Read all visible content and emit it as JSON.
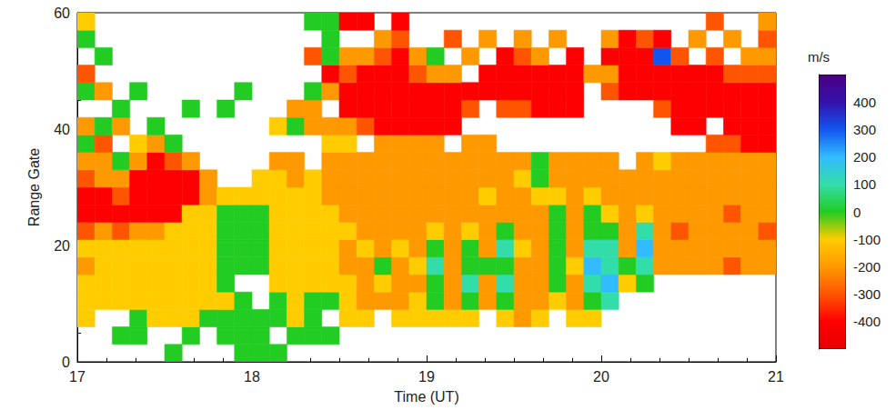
{
  "chart_data": {
    "type": "heatmap",
    "x_label": "Time (UT)",
    "y_label": "Range Gate",
    "xlim": [
      17,
      21
    ],
    "xticks": [
      17,
      18,
      19,
      20,
      21
    ],
    "ylim": [
      0,
      60
    ],
    "yticks": [
      0,
      20,
      40,
      60
    ],
    "grid": false,
    "x_bins": [
      17.0,
      17.1,
      17.2,
      17.3,
      17.4,
      17.5,
      17.6,
      17.7,
      17.8,
      17.9,
      18.0,
      18.1,
      18.2,
      18.3,
      18.4,
      18.5,
      18.6,
      18.7,
      18.8,
      18.9,
      19.0,
      19.1,
      19.2,
      19.3,
      19.4,
      19.5,
      19.6,
      19.7,
      19.8,
      19.9,
      20.0,
      20.1,
      20.2,
      20.3,
      20.4,
      20.5,
      20.6,
      20.7,
      20.8,
      20.9,
      21.0
    ],
    "y_bins": [
      0,
      3,
      6,
      9,
      12,
      15,
      18,
      21,
      24,
      27,
      30,
      33,
      36,
      39,
      42,
      45,
      48,
      51,
      54,
      57,
      60
    ],
    "cells": [
      [
        null,
        null,
        -100,
        -100,
        -100,
        -200,
        -100,
        -300,
        -400,
        -400,
        -300,
        -200,
        0,
        -200,
        null,
        0,
        -300,
        null,
        0,
        -100
      ],
      [
        null,
        null,
        null,
        -100,
        -100,
        -100,
        -100,
        -200,
        -400,
        -400,
        -200,
        -200,
        -300,
        0,
        null,
        -200,
        null,
        0,
        null,
        null
      ],
      [
        null,
        0,
        null,
        -100,
        -100,
        -100,
        -100,
        -300,
        -400,
        -300,
        -200,
        0,
        null,
        -200,
        0,
        null,
        null,
        null,
        null,
        null
      ],
      [
        null,
        0,
        0,
        -100,
        -100,
        -100,
        -100,
        -200,
        -400,
        -400,
        -400,
        -200,
        -100,
        null,
        null,
        0,
        null,
        null,
        null,
        null
      ],
      [
        null,
        null,
        -100,
        -100,
        -100,
        -100,
        -100,
        -200,
        -400,
        -400,
        -400,
        -400,
        -200,
        0,
        null,
        null,
        null,
        null,
        null,
        null
      ],
      [
        0,
        null,
        -100,
        -100,
        -100,
        -100,
        -100,
        -100,
        -400,
        -400,
        -400,
        -300,
        0,
        null,
        null,
        null,
        null,
        null,
        null,
        null
      ],
      [
        null,
        0,
        -100,
        -100,
        -100,
        -100,
        -100,
        -100,
        -100,
        -400,
        -400,
        -200,
        null,
        null,
        0,
        null,
        null,
        null,
        null,
        null
      ],
      [
        null,
        null,
        0,
        -100,
        -100,
        -100,
        -100,
        -100,
        -100,
        -200,
        -200,
        null,
        null,
        null,
        null,
        null,
        null,
        null,
        null,
        null
      ],
      [
        null,
        0,
        0,
        -100,
        0,
        0,
        0,
        0,
        0,
        -100,
        null,
        null,
        null,
        null,
        0,
        null,
        null,
        null,
        null,
        null
      ],
      [
        0,
        0,
        0,
        0,
        null,
        0,
        0,
        0,
        0,
        -100,
        null,
        null,
        null,
        null,
        null,
        0,
        null,
        null,
        null,
        null
      ],
      [
        0,
        0,
        0,
        null,
        null,
        0,
        0,
        0,
        0,
        -100,
        -100,
        null,
        null,
        null,
        null,
        null,
        null,
        null,
        null,
        null
      ],
      [
        0,
        null,
        0,
        0,
        -100,
        -100,
        -100,
        -100,
        -100,
        -100,
        -100,
        -200,
        null,
        -100,
        null,
        null,
        null,
        null,
        null,
        null
      ],
      [
        null,
        0,
        -100,
        -100,
        -100,
        -100,
        -100,
        -100,
        -100,
        -100,
        -200,
        -200,
        null,
        0,
        -200,
        null,
        null,
        null,
        null,
        null
      ],
      [
        null,
        0,
        0,
        0,
        -100,
        -100,
        -100,
        -100,
        -100,
        -100,
        -100,
        null,
        null,
        -200,
        -200,
        0,
        null,
        -300,
        null,
        0
      ],
      [
        null,
        0,
        null,
        0,
        -100,
        -100,
        -100,
        -100,
        -100,
        -200,
        -200,
        -200,
        -100,
        -200,
        null,
        -200,
        -400,
        0,
        0,
        0
      ],
      [
        null,
        null,
        -100,
        -100,
        -100,
        -200,
        -200,
        -100,
        -200,
        -200,
        -200,
        -200,
        -100,
        -200,
        -400,
        -400,
        -300,
        -200,
        null,
        -400
      ],
      [
        null,
        null,
        -100,
        -200,
        -200,
        -200,
        -100,
        -200,
        -200,
        -200,
        -200,
        -200,
        null,
        -300,
        -400,
        -400,
        -400,
        -200,
        null,
        -400
      ],
      [
        null,
        null,
        null,
        -200,
        -100,
        0,
        -200,
        -200,
        -200,
        -200,
        -200,
        -200,
        -200,
        -400,
        -400,
        -400,
        -400,
        -300,
        -200,
        null
      ],
      [
        null,
        null,
        -100,
        -200,
        -200,
        -200,
        -100,
        -200,
        -200,
        -200,
        -200,
        -200,
        -200,
        -400,
        -400,
        -400,
        -400,
        -400,
        -300,
        -400
      ],
      [
        null,
        null,
        -100,
        -100,
        -200,
        -100,
        -200,
        -200,
        -200,
        -200,
        -200,
        -200,
        -200,
        -400,
        -400,
        -400,
        -300,
        -200,
        null,
        null
      ],
      [
        null,
        null,
        -100,
        0,
        0,
        100,
        0,
        -100,
        -200,
        -200,
        -200,
        -200,
        -200,
        -400,
        -400,
        -400,
        -200,
        0,
        null,
        null
      ],
      [
        null,
        null,
        -100,
        -200,
        -200,
        -200,
        -200,
        -200,
        -200,
        -200,
        -200,
        -200,
        null,
        -400,
        -400,
        -400,
        -200,
        null,
        -300,
        null
      ],
      [
        null,
        null,
        -100,
        0,
        100,
        0,
        0,
        -100,
        -200,
        -200,
        -200,
        -200,
        -200,
        null,
        -300,
        -400,
        null,
        -200,
        null,
        null
      ],
      [
        null,
        null,
        null,
        -200,
        -200,
        0,
        -200,
        -200,
        -200,
        -100,
        -200,
        -200,
        -200,
        null,
        null,
        -400,
        -400,
        null,
        -200,
        null
      ],
      [
        null,
        null,
        -100,
        0,
        100,
        0,
        100,
        0,
        -200,
        -200,
        -200,
        -200,
        null,
        null,
        -300,
        -400,
        -400,
        -400,
        null,
        null
      ],
      [
        null,
        null,
        -200,
        -200,
        -200,
        -200,
        -100,
        -200,
        -200,
        -200,
        -100,
        -200,
        null,
        null,
        -300,
        -400,
        -400,
        -300,
        -200,
        null
      ],
      [
        null,
        null,
        -100,
        -200,
        -200,
        -200,
        -200,
        -200,
        -200,
        -100,
        0,
        0,
        null,
        null,
        -400,
        -400,
        -400,
        -200,
        null,
        null
      ],
      [
        null,
        null,
        null,
        -100,
        0,
        0,
        0,
        0,
        0,
        -100,
        -200,
        -200,
        null,
        null,
        -400,
        -400,
        -400,
        null,
        -200,
        null
      ],
      [
        null,
        null,
        -100,
        -200,
        -200,
        -100,
        -200,
        -200,
        -200,
        -200,
        -200,
        -200,
        null,
        null,
        -400,
        -400,
        -400,
        -400,
        null,
        null
      ],
      [
        null,
        null,
        -100,
        0,
        100,
        200,
        100,
        0,
        0,
        -100,
        -200,
        -200,
        null,
        null,
        null,
        null,
        -200,
        null,
        null,
        null
      ],
      [
        null,
        null,
        null,
        100,
        200,
        100,
        100,
        0,
        -100,
        -200,
        -200,
        -200,
        null,
        null,
        null,
        -300,
        -200,
        -400,
        -200,
        null
      ],
      [
        null,
        null,
        null,
        null,
        -100,
        0,
        -200,
        -200,
        -200,
        -200,
        -200,
        null,
        null,
        null,
        null,
        -400,
        -400,
        -400,
        -400,
        null
      ],
      [
        null,
        null,
        null,
        null,
        0,
        100,
        200,
        100,
        -100,
        -200,
        -200,
        -200,
        null,
        null,
        null,
        -400,
        -400,
        -400,
        -300,
        null
      ],
      [
        null,
        null,
        null,
        null,
        null,
        -200,
        -200,
        -200,
        -200,
        -200,
        -200,
        -100,
        null,
        null,
        -300,
        -400,
        -400,
        300,
        -400,
        null
      ],
      [
        null,
        null,
        null,
        null,
        null,
        -200,
        -200,
        -300,
        -200,
        -200,
        -200,
        -200,
        null,
        -400,
        -400,
        -400,
        -400,
        -300,
        null,
        null
      ],
      [
        null,
        null,
        null,
        null,
        null,
        -200,
        -200,
        -200,
        -200,
        -200,
        -200,
        -200,
        null,
        -400,
        -400,
        -400,
        -400,
        null,
        -200,
        null
      ],
      [
        null,
        null,
        null,
        null,
        null,
        -200,
        -200,
        -200,
        -200,
        -200,
        -200,
        -200,
        -300,
        null,
        -400,
        -400,
        -400,
        -300,
        null,
        -300
      ],
      [
        null,
        null,
        null,
        null,
        null,
        -300,
        -200,
        -200,
        -300,
        -200,
        -200,
        -200,
        -300,
        -400,
        -400,
        -400,
        -300,
        null,
        -200,
        null
      ],
      [
        null,
        null,
        null,
        null,
        null,
        -200,
        -200,
        -200,
        -200,
        -200,
        -200,
        -200,
        -400,
        -400,
        -400,
        -400,
        -300,
        -200,
        null,
        null
      ],
      [
        null,
        null,
        null,
        null,
        null,
        -200,
        -200,
        -300,
        -200,
        -200,
        -200,
        -200,
        -400,
        -400,
        -400,
        -400,
        -300,
        -200,
        -300,
        -200
      ]
    ],
    "colorbar": {
      "title": "m/s",
      "range": [
        -500,
        500
      ],
      "ticks": [
        -400,
        -300,
        -200,
        -100,
        0,
        100,
        200,
        300,
        400
      ]
    }
  }
}
